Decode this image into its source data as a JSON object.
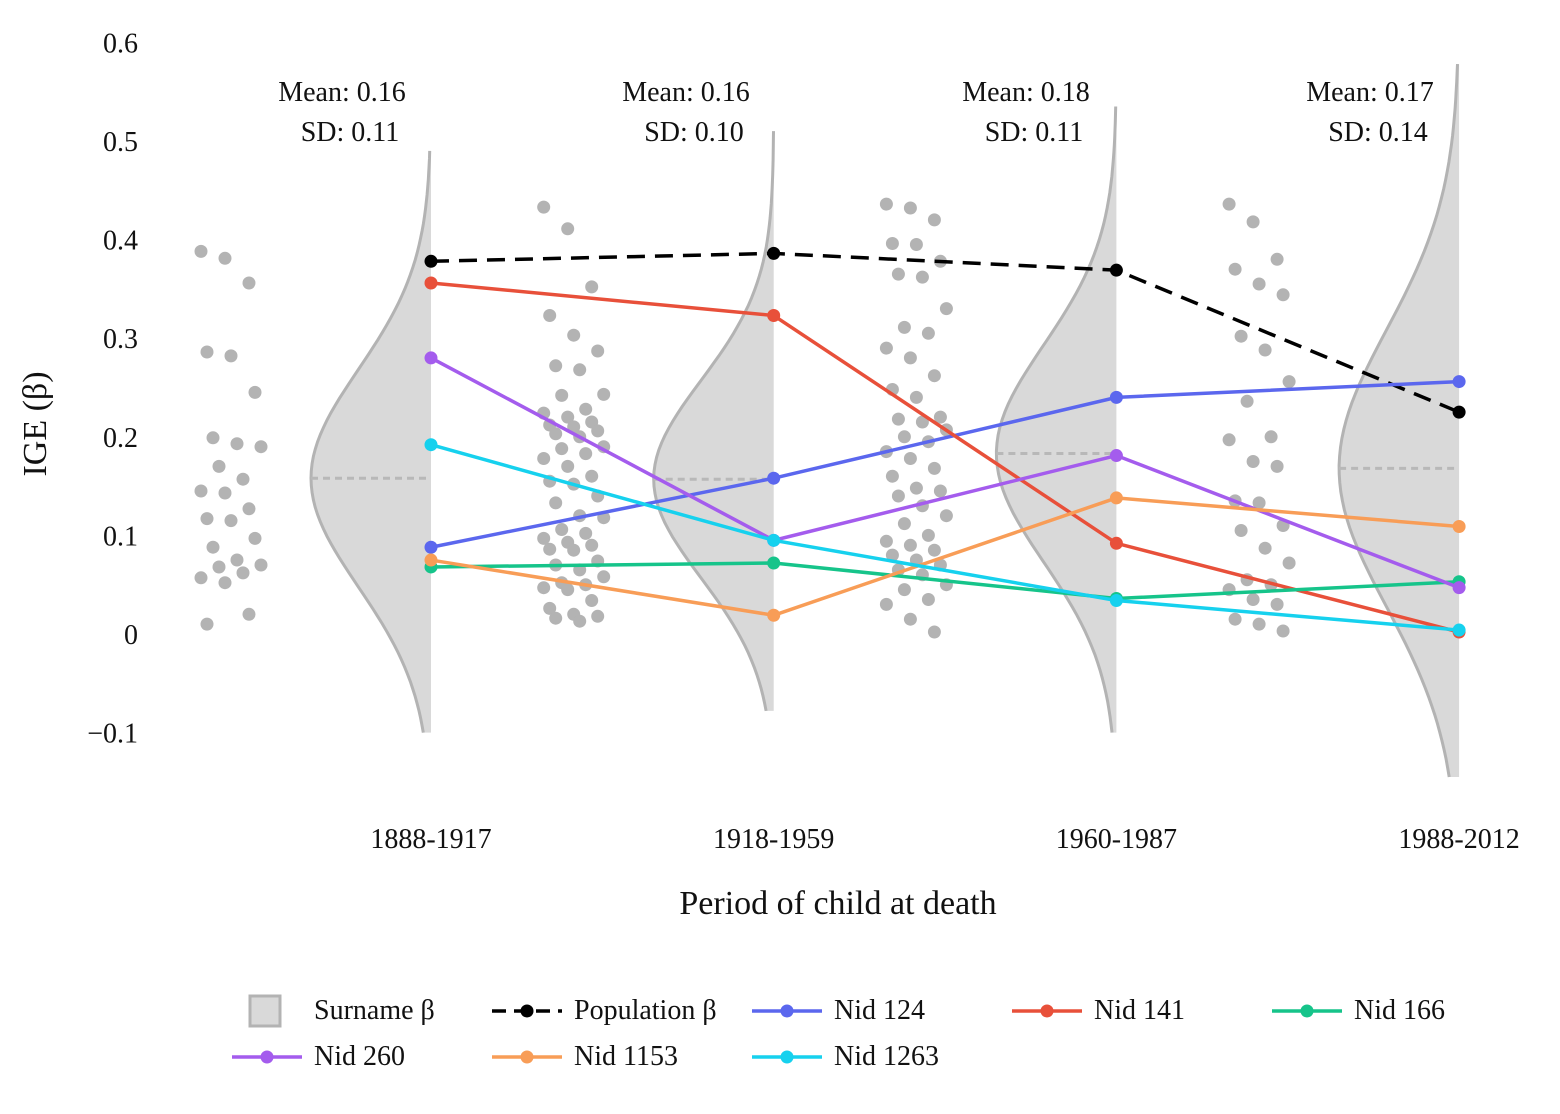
{
  "chart_data": {
    "type": "line",
    "ylabel": "IGE (β)",
    "xlabel": "Period of child at death",
    "ylim": [
      -0.1,
      0.6
    ],
    "yticks": [
      -0.1,
      0,
      0.1,
      0.2,
      0.3,
      0.4,
      0.5,
      0.6
    ],
    "ytick_labels": [
      "−0.1",
      "0",
      "0.1",
      "0.2",
      "0.3",
      "0.4",
      "0.5",
      "0.6"
    ],
    "categories": [
      "1888-1917",
      "1918-1959",
      "1960-1987",
      "1988-2012"
    ],
    "grid": false,
    "legend_position": "bottom",
    "annotations": [
      {
        "mean": "Mean: 0.16",
        "sd": "SD: 0.11"
      },
      {
        "mean": "Mean: 0.16",
        "sd": "SD: 0.10"
      },
      {
        "mean": "Mean: 0.18",
        "sd": "SD: 0.11"
      },
      {
        "mean": "Mean: 0.17",
        "sd": "SD: 0.14"
      }
    ],
    "surname_distribution": {
      "name": "Surname β",
      "color": "#d9d9d9",
      "edge_color": "#b3b3b3",
      "means": [
        0.158,
        0.157,
        0.183,
        0.168
      ],
      "sds": [
        0.11,
        0.1,
        0.11,
        0.14
      ],
      "ranges": [
        [
          -0.1,
          0.49
        ],
        [
          -0.078,
          0.51
        ],
        [
          -0.1,
          0.535
        ],
        [
          -0.145,
          0.578
        ]
      ],
      "scatter_points": [
        [
          0.388,
          0.381,
          0.356,
          0.286,
          0.282,
          0.245,
          0.199,
          0.193,
          0.19,
          0.17,
          0.157,
          0.145,
          0.143,
          0.127,
          0.117,
          0.115,
          0.097,
          0.088,
          0.075,
          0.07,
          0.068,
          0.062,
          0.057,
          0.052,
          0.02,
          0.01
        ],
        [
          0.433,
          0.411,
          0.352,
          0.323,
          0.303,
          0.287,
          0.272,
          0.268,
          0.243,
          0.242,
          0.228,
          0.224,
          0.22,
          0.215,
          0.212,
          0.21,
          0.206,
          0.203,
          0.2,
          0.19,
          0.188,
          0.183,
          0.178,
          0.17,
          0.16,
          0.155,
          0.152,
          0.14,
          0.133,
          0.12,
          0.118,
          0.106,
          0.102,
          0.097,
          0.093,
          0.09,
          0.086,
          0.085,
          0.074,
          0.07,
          0.065,
          0.058,
          0.052,
          0.05,
          0.047,
          0.045,
          0.034,
          0.026,
          0.02,
          0.018,
          0.016,
          0.013
        ],
        [
          0.436,
          0.432,
          0.42,
          0.396,
          0.395,
          0.378,
          0.365,
          0.362,
          0.33,
          0.311,
          0.305,
          0.29,
          0.28,
          0.262,
          0.248,
          0.24,
          0.22,
          0.218,
          0.215,
          0.207,
          0.2,
          0.195,
          0.185,
          0.178,
          0.168,
          0.16,
          0.148,
          0.145,
          0.14,
          0.13,
          0.12,
          0.112,
          0.1,
          0.094,
          0.09,
          0.085,
          0.08,
          0.075,
          0.07,
          0.065,
          0.06,
          0.05,
          0.045,
          0.035,
          0.03,
          0.015,
          0.002
        ],
        [
          0.436,
          0.418,
          0.38,
          0.37,
          0.355,
          0.344,
          0.302,
          0.288,
          0.256,
          0.236,
          0.2,
          0.197,
          0.175,
          0.17,
          0.135,
          0.133,
          0.11,
          0.105,
          0.087,
          0.072,
          0.055,
          0.05,
          0.045,
          0.035,
          0.03,
          0.015,
          0.01,
          0.003
        ]
      ]
    },
    "series": [
      {
        "name": "Population β",
        "color": "#000000",
        "dashed": true,
        "values": [
          0.378,
          0.386,
          0.369,
          0.225
        ]
      },
      {
        "name": "Nid 124",
        "color": "#5b67ee",
        "values": [
          0.088,
          0.158,
          0.24,
          0.256
        ]
      },
      {
        "name": "Nid 141",
        "color": "#e8503a",
        "values": [
          0.356,
          0.323,
          0.092,
          0.002
        ]
      },
      {
        "name": "Nid 166",
        "color": "#16c48a",
        "values": [
          0.068,
          0.072,
          0.036,
          0.053
        ]
      },
      {
        "name": "Nid 260",
        "color": "#a45ced",
        "values": [
          0.28,
          0.095,
          0.181,
          0.047
        ]
      },
      {
        "name": "Nid 1153",
        "color": "#f89d57",
        "values": [
          0.075,
          0.019,
          0.138,
          0.109
        ]
      },
      {
        "name": "Nid 1263",
        "color": "#16d1ee",
        "values": [
          0.192,
          0.095,
          0.034,
          0.004
        ]
      }
    ]
  }
}
